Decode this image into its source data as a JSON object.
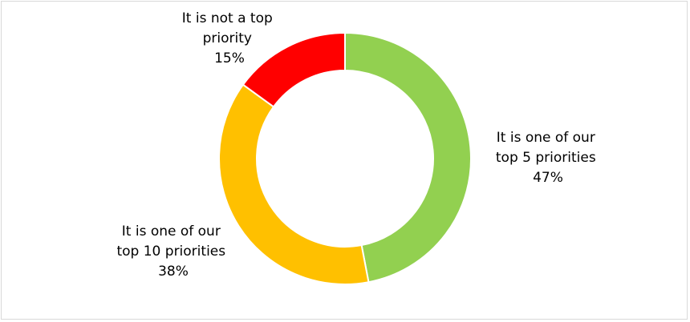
{
  "chart_data": {
    "type": "pie",
    "donut": true,
    "title": "",
    "series": [
      {
        "name": "",
        "values": [
          47,
          38,
          15
        ]
      }
    ],
    "categories": [
      "It is one of our top 5 priorities",
      "It is one of our top 10 priorities",
      "It is not a top priority"
    ],
    "slices": [
      {
        "label_lines": [
          "It is one of our",
          "top 5 priorities"
        ],
        "value": 47,
        "value_text": "47%",
        "color": "#92d050"
      },
      {
        "label_lines": [
          "It is one of our",
          "top 10 priorities"
        ],
        "value": 38,
        "value_text": "38%",
        "color": "#ffc000"
      },
      {
        "label_lines": [
          "It is not a top",
          "priority"
        ],
        "value": 15,
        "value_text": "15%",
        "color": "#ff0000"
      }
    ],
    "legend": "none"
  }
}
